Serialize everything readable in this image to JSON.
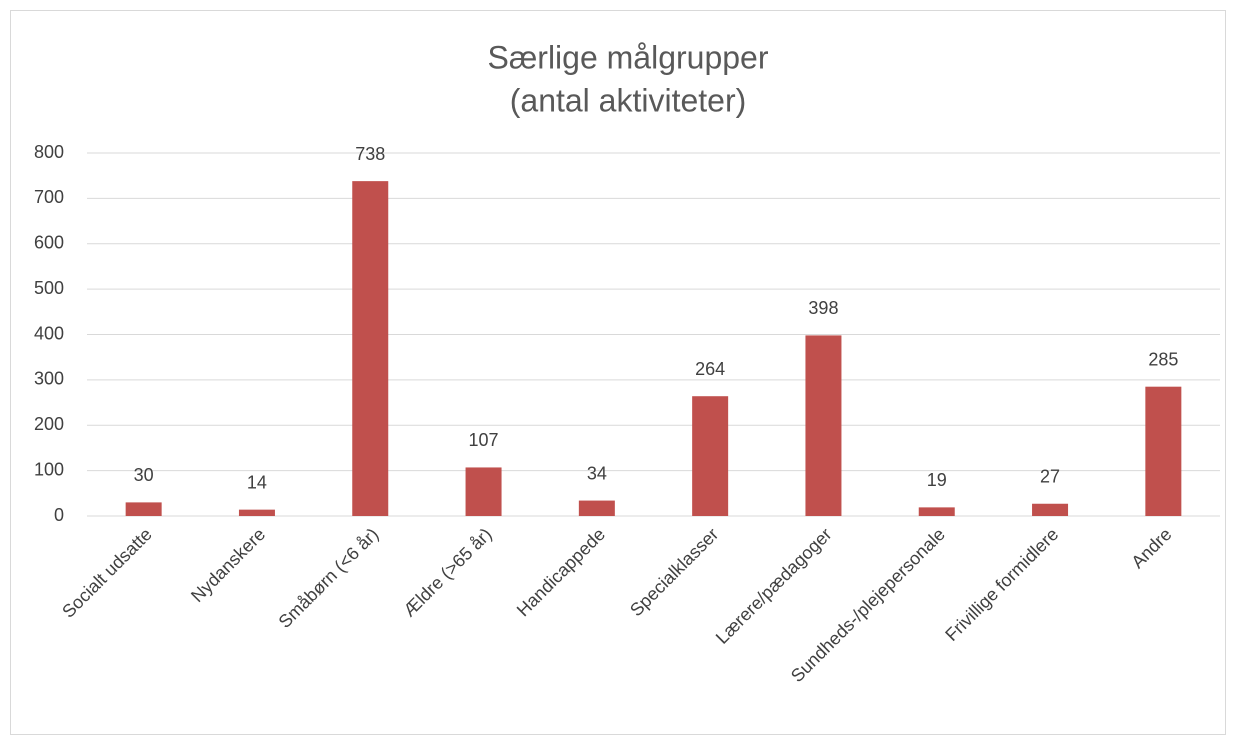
{
  "chart_data": {
    "type": "bar",
    "title": "Særlige målgrupper",
    "subtitle": "(antal aktiviteter)",
    "categories": [
      "Socialt udsatte",
      "Nydanskere",
      "Småbørn (<6 år)",
      "Ældre (>65 år)",
      "Handicappede",
      "Specialklasser",
      "Lærere/pædagoger",
      "Sundheds-/plejepersonale",
      "Frivillige formidlere",
      "Andre"
    ],
    "values": [
      30,
      14,
      738,
      107,
      34,
      264,
      398,
      19,
      27,
      285
    ],
    "color": "#c0504d",
    "ylim": [
      0,
      800
    ],
    "yticks": [
      0,
      100,
      200,
      300,
      400,
      500,
      600,
      700,
      800
    ],
    "grid": true
  }
}
